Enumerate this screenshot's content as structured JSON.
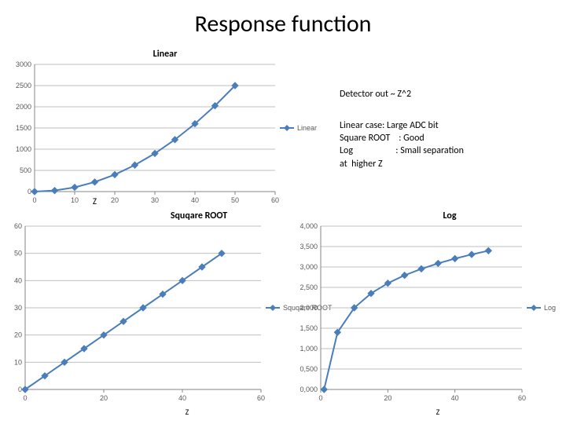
{
  "page": {
    "title": "Response function"
  },
  "annotations": {
    "eq": "Detector out  ~ Z^2",
    "body": "Linear case: Large ADC bit\nSquare ROOT    : Good\nLog                    : Small separation\nat  higher Z"
  },
  "linear_chart": {
    "title": "Linear",
    "type": "line",
    "series_name": "Linear",
    "x": [
      0,
      5,
      10,
      15,
      20,
      25,
      30,
      35,
      40,
      45,
      50
    ],
    "y": [
      0,
      25,
      100,
      225,
      400,
      625,
      900,
      1225,
      1600,
      2025,
      2500
    ],
    "xlim": [
      0,
      60
    ],
    "ylim": [
      0,
      3000
    ],
    "xtick_step": 10,
    "ytick_step": 500,
    "line_color": "#4a7ebb",
    "marker_color": "#4a7ebb",
    "grid_color": "#bfbfbf",
    "axis_color": "#868686",
    "plot_bg": "#ffffff",
    "tick_font_color": "#595959",
    "x_axis_label": "Z",
    "marker_size": 4,
    "line_width": 2,
    "title_fontsize": 12
  },
  "sqrt_chart": {
    "title": "Squqare ROOT",
    "type": "line",
    "series_name": "Squqare ROOT",
    "x": [
      0,
      5,
      10,
      15,
      20,
      25,
      30,
      35,
      40,
      45,
      50
    ],
    "y": [
      0,
      5,
      10,
      15,
      20,
      25,
      30,
      35,
      40,
      45,
      50
    ],
    "xlim": [
      0,
      60
    ],
    "ylim": [
      0,
      60
    ],
    "xtick_step": 20,
    "ytick_step": 10,
    "line_color": "#4a7ebb",
    "marker_color": "#4a7ebb",
    "grid_color": "#bfbfbf",
    "axis_color": "#868686",
    "plot_bg": "#ffffff",
    "tick_font_color": "#595959",
    "x_axis_label": "Z",
    "marker_size": 4,
    "line_width": 2,
    "title_fontsize": 12
  },
  "log_chart": {
    "title": "Log",
    "type": "line",
    "series_name": "Log",
    "x": [
      1,
      5,
      10,
      15,
      20,
      25,
      30,
      35,
      40,
      45,
      50
    ],
    "y": [
      0,
      1.398,
      2.0,
      2.352,
      2.602,
      2.796,
      2.954,
      3.088,
      3.204,
      3.306,
      3.398
    ],
    "xlim": [
      0,
      60
    ],
    "ylim": [
      0,
      4.0
    ],
    "xtick_step": 20,
    "ytick_step": 0.5,
    "yticks": [
      "0,000",
      "0,500",
      "1,000",
      "1,500",
      "2,000",
      "2,500",
      "3,000",
      "3,500",
      "4,000"
    ],
    "line_color": "#4a7ebb",
    "marker_color": "#4a7ebb",
    "grid_color": "#bfbfbf",
    "axis_color": "#868686",
    "plot_bg": "#ffffff",
    "tick_font_color": "#595959",
    "x_axis_label": "Z",
    "marker_size": 4,
    "line_width": 2,
    "title_fontsize": 12
  }
}
